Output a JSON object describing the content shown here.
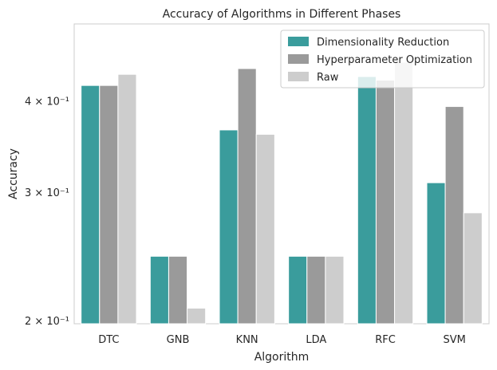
{
  "chart_data": {
    "type": "bar",
    "title": "Accuracy of Algorithms in Different Phases",
    "xlabel": "Algorithm",
    "ylabel": "Accuracy",
    "yscale": "log",
    "ylim": [
      0.198,
      0.51
    ],
    "yticks": [
      {
        "value": 0.2,
        "label": "2 × 10⁻¹"
      },
      {
        "value": 0.3,
        "label": "3 × 10⁻¹"
      },
      {
        "value": 0.4,
        "label": "4 × 10⁻¹"
      }
    ],
    "categories": [
      "DTC",
      "GNB",
      "KNN",
      "LDA",
      "RFC",
      "SVM"
    ],
    "series": [
      {
        "name": "Dimensionality Reduction",
        "color": "#3a9c9c",
        "values": [
          0.42,
          0.245,
          0.365,
          0.245,
          0.432,
          0.309
        ]
      },
      {
        "name": "Hyperparameter Optimization",
        "color": "#9a9a9a",
        "values": [
          0.42,
          0.245,
          0.443,
          0.245,
          0.427,
          0.393
        ]
      },
      {
        "name": "Raw",
        "color": "#cdcdcd",
        "values": [
          0.435,
          0.208,
          0.36,
          0.245,
          0.452,
          0.281
        ]
      }
    ],
    "grid": false,
    "legend_position": "top-right"
  }
}
